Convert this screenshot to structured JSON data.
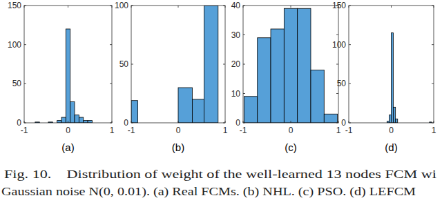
{
  "chart_data": [
    {
      "type": "histogram",
      "title": "(a)",
      "color": "#56a0d8",
      "bins": [
        -0.75,
        -0.65,
        -0.55,
        -0.45,
        -0.35,
        -0.25,
        -0.15,
        -0.05,
        0.05,
        0.15,
        0.25,
        0.35,
        0.45,
        0.55,
        0.65
      ],
      "values": [
        1,
        0,
        0,
        1,
        0,
        3,
        7,
        120,
        27,
        10,
        7,
        3,
        3,
        0
      ],
      "xlim": [
        -1,
        1
      ],
      "xticks": [
        -1,
        0,
        1
      ],
      "ylim": [
        0,
        150
      ],
      "yticks": [
        0,
        50,
        100,
        150
      ],
      "grid": false
    },
    {
      "type": "histogram",
      "title": "(b)",
      "color": "#56a0d8",
      "bins": [
        -1,
        -0.86,
        0,
        0.3,
        0.55,
        0.85
      ],
      "values": [
        19,
        0,
        30,
        20,
        100
      ],
      "xlim": [
        -1,
        1
      ],
      "xticks": [
        -1,
        0,
        1
      ],
      "ylim": [
        0,
        100
      ],
      "yticks": [
        0,
        50,
        100
      ],
      "grid": false
    },
    {
      "type": "histogram",
      "title": "(c)",
      "color": "#56a0d8",
      "bins": [
        -0.98,
        -0.7,
        -0.42,
        -0.14,
        0.14,
        0.42,
        0.7,
        0.98
      ],
      "values": [
        9,
        29,
        32,
        39,
        39,
        18,
        3
      ],
      "xlim": [
        -1,
        1
      ],
      "xticks": [
        -1,
        0,
        1
      ],
      "ylim": [
        0,
        40
      ],
      "yticks": [
        0,
        10,
        20,
        30,
        40
      ],
      "grid": false
    },
    {
      "type": "histogram",
      "title": "(d)",
      "color": "#56a0d8",
      "bins": [
        -0.1,
        -0.05,
        0,
        0.05,
        0.1,
        0.15,
        0.2,
        0.25,
        0.3,
        0.35,
        0.4,
        0.45,
        0.5,
        0.55,
        0.6,
        0.65,
        0.7,
        0.75,
        0.8,
        0.85,
        0.9,
        0.95
      ],
      "values": [
        2,
        10,
        115,
        20,
        5,
        0,
        0,
        0,
        0,
        0,
        0,
        0,
        0,
        0,
        0,
        0,
        0,
        0,
        0,
        0,
        1
      ],
      "xlim": [
        -1,
        1
      ],
      "xticks": [
        -1,
        0,
        1
      ],
      "ylim": [
        0,
        150
      ],
      "yticks": [
        0,
        50,
        100,
        150
      ],
      "grid": false
    }
  ],
  "caption": [
    "Fig. 10.    Distribution of weight of the well-learned 13 nodes FCM wi",
    "Gaussian noise N(0, 0.01). (a) Real FCMs. (b) NHL. (c) PSO. (d) LEFCM"
  ]
}
